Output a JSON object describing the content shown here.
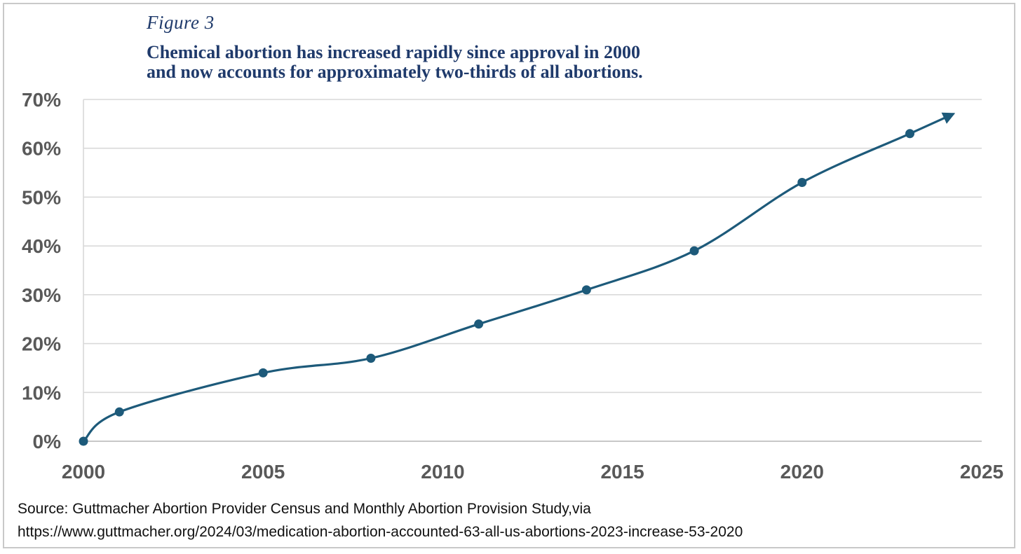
{
  "figure_label": "Figure 3",
  "title_lines": [
    "Chemical abortion has increased rapidly since approval in 2000",
    "and now accounts for approximately two-thirds of all abortions."
  ],
  "source_lines": [
    "Source: Guttmacher Abortion Provider Census and Monthly Abortion Provision Study,via",
    "https://www.guttmacher.org/2024/03/medication-abortion-accounted-63-all-us-abortions-2023-increase-53-2020"
  ],
  "colors": {
    "line": "#1d5a7a",
    "title": "#1f3a6b",
    "grid": "#d9d9d9",
    "tick": "#595959"
  },
  "chart_data": {
    "type": "line",
    "title": "Chemical abortion has increased rapidly since approval in 2000 and now accounts for approximately two-thirds of all abortions.",
    "xlabel": "",
    "ylabel": "",
    "xlim": [
      2000,
      2025
    ],
    "ylim": [
      0,
      70
    ],
    "x_ticks": [
      2000,
      2005,
      2010,
      2015,
      2020,
      2025
    ],
    "x_tick_labels": [
      "2000",
      "2005",
      "2010",
      "2015",
      "2020",
      "2025"
    ],
    "y_ticks": [
      0,
      10,
      20,
      30,
      40,
      50,
      60,
      70
    ],
    "y_tick_labels": [
      "0%",
      "10%",
      "20%",
      "30%",
      "40%",
      "50%",
      "60%",
      "70%"
    ],
    "grid": "horizontal",
    "legend": "none",
    "smooth": true,
    "trend_arrow_end": {
      "x": 2024.2,
      "y": 67
    },
    "series": [
      {
        "x": [
          2000,
          2001,
          2005,
          2008,
          2011,
          2014,
          2017,
          2020,
          2023
        ],
        "y": [
          0,
          6,
          14,
          17,
          24,
          31,
          39,
          53,
          63
        ]
      }
    ]
  }
}
